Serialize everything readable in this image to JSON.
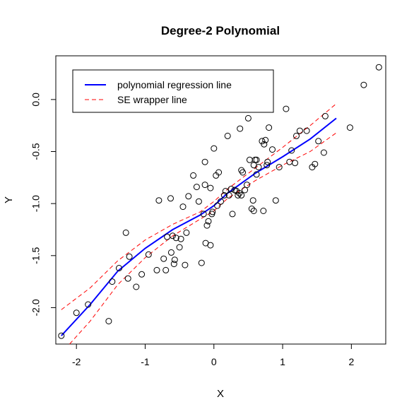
{
  "chart_data": {
    "type": "scatter",
    "title": "Degree-2 Polynomial",
    "xlabel": "X",
    "ylabel": "Y",
    "xlim": [
      -2.3,
      2.5
    ],
    "ylim": [
      -2.35,
      0.42
    ],
    "xticks": [
      -2,
      -1,
      0,
      1,
      2
    ],
    "xtick_labels": [
      "-2",
      "-1",
      "0",
      "1",
      "2"
    ],
    "yticks": [
      -2.0,
      -1.5,
      -1.0,
      -0.5,
      0.0
    ],
    "ytick_labels": [
      "-2.0",
      "-1.5",
      "-1.0",
      "-0.5",
      "0.0"
    ],
    "grid": false,
    "legend_position": "top-left",
    "colors": {
      "regression": "#0000ff",
      "se": "#ff0000",
      "points": "#000000"
    },
    "legend": [
      {
        "label": "polynomial regression line",
        "color": "#0000ff",
        "style": "solid"
      },
      {
        "label": "SE wrapper line",
        "color": "#ff0000",
        "style": "dashed"
      }
    ],
    "points": [
      [
        -2.22,
        -2.27
      ],
      [
        -2.0,
        -2.05
      ],
      [
        -1.83,
        -1.97
      ],
      [
        -1.53,
        -2.13
      ],
      [
        -1.48,
        -1.75
      ],
      [
        -1.38,
        -1.62
      ],
      [
        -1.28,
        -1.28
      ],
      [
        -1.25,
        -1.72
      ],
      [
        -1.23,
        -1.51
      ],
      [
        -1.13,
        -1.8
      ],
      [
        -1.05,
        -1.68
      ],
      [
        -0.95,
        -1.49
      ],
      [
        -0.83,
        -1.64
      ],
      [
        -0.8,
        -0.97
      ],
      [
        -0.73,
        -1.53
      ],
      [
        -0.7,
        -1.64
      ],
      [
        -0.68,
        -1.32
      ],
      [
        -0.63,
        -0.95
      ],
      [
        -0.62,
        -1.47
      ],
      [
        -0.6,
        -1.31
      ],
      [
        -0.58,
        -1.58
      ],
      [
        -0.57,
        -1.54
      ],
      [
        -0.55,
        -1.33
      ],
      [
        -0.5,
        -1.42
      ],
      [
        -0.48,
        -1.34
      ],
      [
        -0.45,
        -1.03
      ],
      [
        -0.42,
        -1.59
      ],
      [
        -0.4,
        -1.28
      ],
      [
        -0.37,
        -0.93
      ],
      [
        -0.3,
        -0.73
      ],
      [
        -0.25,
        -0.84
      ],
      [
        -0.22,
        -0.98
      ],
      [
        -0.18,
        -1.57
      ],
      [
        -0.15,
        -1.1
      ],
      [
        -0.13,
        -0.82
      ],
      [
        -0.13,
        -0.6
      ],
      [
        -0.12,
        -1.38
      ],
      [
        -0.1,
        -1.21
      ],
      [
        -0.08,
        -1.17
      ],
      [
        -0.05,
        -0.85
      ],
      [
        -0.05,
        -1.4
      ],
      [
        -0.03,
        -1.1
      ],
      [
        -0.02,
        -1.08
      ],
      [
        0.0,
        -0.47
      ],
      [
        0.03,
        -0.73
      ],
      [
        0.05,
        -1.02
      ],
      [
        0.07,
        -0.7
      ],
      [
        0.1,
        -0.98
      ],
      [
        0.15,
        -0.92
      ],
      [
        0.17,
        -0.88
      ],
      [
        0.2,
        -0.35
      ],
      [
        0.22,
        -0.92
      ],
      [
        0.25,
        -0.86
      ],
      [
        0.27,
        -1.1
      ],
      [
        0.3,
        -0.87
      ],
      [
        0.33,
        -0.88
      ],
      [
        0.35,
        -0.92
      ],
      [
        0.37,
        -0.9
      ],
      [
        0.38,
        -0.28
      ],
      [
        0.4,
        -0.92
      ],
      [
        0.4,
        -0.68
      ],
      [
        0.42,
        -0.7
      ],
      [
        0.45,
        -0.87
      ],
      [
        0.48,
        -0.82
      ],
      [
        0.5,
        -0.18
      ],
      [
        0.52,
        -0.58
      ],
      [
        0.55,
        -1.05
      ],
      [
        0.57,
        -0.97
      ],
      [
        0.58,
        -1.07
      ],
      [
        0.58,
        -0.63
      ],
      [
        0.6,
        -0.58
      ],
      [
        0.62,
        -0.58
      ],
      [
        0.62,
        -0.72
      ],
      [
        0.65,
        -0.65
      ],
      [
        0.7,
        -0.4
      ],
      [
        0.72,
        -1.07
      ],
      [
        0.73,
        -0.43
      ],
      [
        0.75,
        -0.39
      ],
      [
        0.77,
        -0.63
      ],
      [
        0.78,
        -0.6
      ],
      [
        0.8,
        -0.27
      ],
      [
        0.85,
        -0.48
      ],
      [
        0.9,
        -0.97
      ],
      [
        0.95,
        -0.65
      ],
      [
        1.05,
        -0.09
      ],
      [
        1.1,
        -0.6
      ],
      [
        1.13,
        -0.49
      ],
      [
        1.18,
        -0.61
      ],
      [
        1.2,
        -0.35
      ],
      [
        1.25,
        -0.3
      ],
      [
        1.35,
        -0.3
      ],
      [
        1.43,
        -0.65
      ],
      [
        1.47,
        -0.62
      ],
      [
        1.52,
        -0.4
      ],
      [
        1.6,
        -0.51
      ],
      [
        1.62,
        -0.16
      ],
      [
        1.98,
        -0.27
      ],
      [
        2.18,
        0.14
      ],
      [
        2.4,
        0.31
      ]
    ],
    "series": [
      {
        "name": "polynomial regression line",
        "style": "solid",
        "x": [
          -2.22,
          -1.8,
          -1.4,
          -1.0,
          -0.6,
          -0.2,
          0.0,
          0.2,
          0.6,
          1.0,
          1.4,
          1.78
        ],
        "y": [
          -2.27,
          -1.97,
          -1.65,
          -1.43,
          -1.25,
          -1.11,
          -1.02,
          -0.9,
          -0.71,
          -0.55,
          -0.38,
          -0.18
        ]
      },
      {
        "name": "SE wrapper line",
        "style": "dashed",
        "x": [
          -2.22,
          -1.8,
          -1.4,
          -1.0,
          -0.6,
          -0.2,
          0.0,
          0.2,
          0.6,
          1.0,
          1.4,
          1.78
        ],
        "y": [
          -2.02,
          -1.81,
          -1.55,
          -1.35,
          -1.2,
          -1.08,
          -0.98,
          -0.86,
          -0.66,
          -0.46,
          -0.25,
          -0.04
        ]
      },
      {
        "name": "SE wrapper line",
        "style": "dashed",
        "x": [
          -2.1,
          -1.8,
          -1.4,
          -1.0,
          -0.6,
          -0.2,
          0.0,
          0.2,
          0.6,
          1.0,
          1.4,
          1.78
        ],
        "y": [
          -2.35,
          -2.13,
          -1.78,
          -1.52,
          -1.31,
          -1.15,
          -1.07,
          -0.95,
          -0.78,
          -0.63,
          -0.5,
          -0.32
        ]
      }
    ]
  }
}
